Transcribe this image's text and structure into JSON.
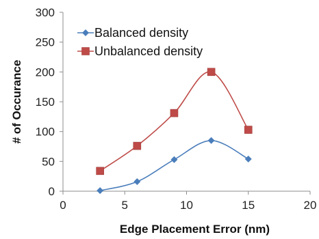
{
  "chart_data": {
    "type": "line",
    "xlabel": "Edge Placement Error (nm)",
    "ylabel": "# of Occurance",
    "xlim": [
      0,
      20
    ],
    "ylim": [
      0,
      300
    ],
    "xticks": [
      0,
      5,
      10,
      15,
      20
    ],
    "yticks": [
      0,
      50,
      100,
      150,
      200,
      250,
      300
    ],
    "grid": false,
    "smooth": true,
    "legend": "top-left",
    "series": [
      {
        "name": "Balanced density",
        "marker": "diamond",
        "color": "#4a7ebb",
        "x": [
          3,
          6,
          9,
          12,
          15
        ],
        "y": [
          1,
          16,
          53,
          85,
          54
        ]
      },
      {
        "name": "Unbalanced density",
        "marker": "square",
        "color": "#be4b48",
        "x": [
          3,
          6,
          9,
          12,
          15
        ],
        "y": [
          34,
          76,
          131,
          200,
          103
        ]
      }
    ]
  }
}
